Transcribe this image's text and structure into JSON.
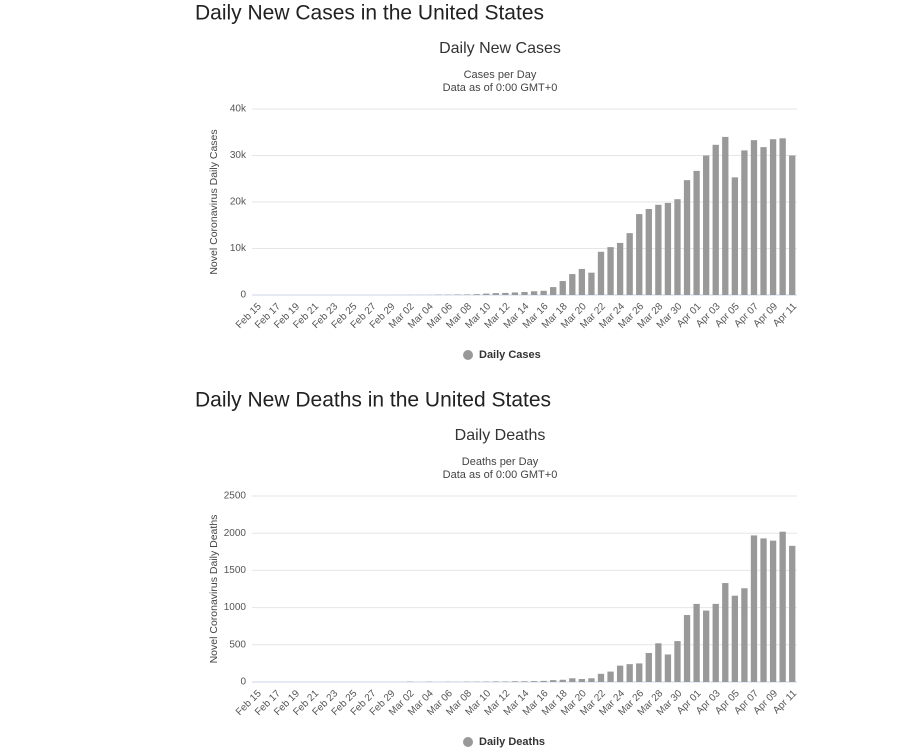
{
  "chart_data": [
    {
      "type": "bar",
      "heading": "Daily New Cases in the United States",
      "title": "Daily New Cases",
      "subtitle": [
        "Cases per Day",
        "Data as of 0:00 GMT+0"
      ],
      "ylabel": "Novel Coronavirus Daily Cases",
      "categories": [
        "Feb 15",
        null,
        "Feb 17",
        null,
        "Feb 19",
        null,
        "Feb 21",
        null,
        "Feb 23",
        null,
        "Feb 25",
        null,
        "Feb 27",
        null,
        "Feb 29",
        null,
        "Mar 02",
        null,
        "Mar 04",
        null,
        "Mar 06",
        null,
        "Mar 08",
        null,
        "Mar 10",
        null,
        "Mar 12",
        null,
        "Mar 14",
        null,
        "Mar 16",
        null,
        "Mar 18",
        null,
        "Mar 20",
        null,
        "Mar 22",
        null,
        "Mar 24",
        null,
        "Mar 26",
        null,
        "Mar 28",
        null,
        "Mar 30",
        null,
        "Apr 01",
        null,
        "Apr 03",
        null,
        "Apr 05",
        null,
        "Apr 07",
        null,
        "Apr 09",
        null,
        "Apr 11"
      ],
      "series": [
        {
          "name": "Daily Cases",
          "color": "#999999",
          "values": [
            0,
            0,
            0,
            0,
            0,
            0,
            0,
            0,
            0,
            0,
            0,
            0,
            0,
            0,
            0,
            10,
            20,
            25,
            30,
            70,
            70,
            110,
            120,
            180,
            300,
            400,
            450,
            550,
            650,
            800,
            900,
            1700,
            3000,
            4500,
            5600,
            4800,
            9300,
            10300,
            11200,
            13300,
            17400,
            18500,
            19400,
            19800,
            20600,
            24700,
            26700,
            30000,
            32300,
            34000,
            25300,
            31100,
            33300,
            31800,
            33500,
            33700,
            30000
          ]
        }
      ],
      "ylim": [
        0,
        40000
      ],
      "yticks": [
        0,
        {
          "value": 10000,
          "label": "10k"
        },
        {
          "value": 20000,
          "label": "20k"
        },
        {
          "value": 30000,
          "label": "30k"
        },
        {
          "value": 40000,
          "label": "40k"
        }
      ],
      "grid": true
    },
    {
      "type": "bar",
      "heading": "Daily New Deaths in the United States",
      "title": "Daily Deaths",
      "subtitle": [
        "Deaths per Day",
        "Data as of 0:00 GMT+0"
      ],
      "ylabel": "Novel Coronavirus Daily Deaths",
      "categories": [
        "Feb 15",
        null,
        "Feb 17",
        null,
        "Feb 19",
        null,
        "Feb 21",
        null,
        "Feb 23",
        null,
        "Feb 25",
        null,
        "Feb 27",
        null,
        "Feb 29",
        null,
        "Mar 02",
        null,
        "Mar 04",
        null,
        "Mar 06",
        null,
        "Mar 08",
        null,
        "Mar 10",
        null,
        "Mar 12",
        null,
        "Mar 14",
        null,
        "Mar 16",
        null,
        "Mar 18",
        null,
        "Mar 20",
        null,
        "Mar 22",
        null,
        "Mar 24",
        null,
        "Mar 26",
        null,
        "Mar 28",
        null,
        "Mar 30",
        null,
        "Apr 01",
        null,
        "Apr 03",
        null,
        "Apr 05",
        null,
        "Apr 07",
        null,
        "Apr 09",
        null,
        "Apr 11"
      ],
      "series": [
        {
          "name": "Daily Deaths",
          "color": "#999999",
          "values": [
            0,
            0,
            0,
            0,
            0,
            0,
            0,
            0,
            0,
            0,
            0,
            0,
            0,
            0,
            0,
            1,
            5,
            1,
            4,
            1,
            3,
            2,
            4,
            4,
            6,
            8,
            7,
            10,
            10,
            12,
            15,
            25,
            30,
            50,
            40,
            50,
            110,
            140,
            220,
            240,
            250,
            390,
            520,
            370,
            550,
            900,
            1050,
            960,
            1050,
            1330,
            1160,
            1260,
            1970,
            1930,
            1900,
            2020,
            1830
          ]
        }
      ],
      "ylim": [
        0,
        2500
      ],
      "yticks": [
        0,
        500,
        1000,
        1500,
        2000,
        2500
      ],
      "grid": true
    }
  ]
}
